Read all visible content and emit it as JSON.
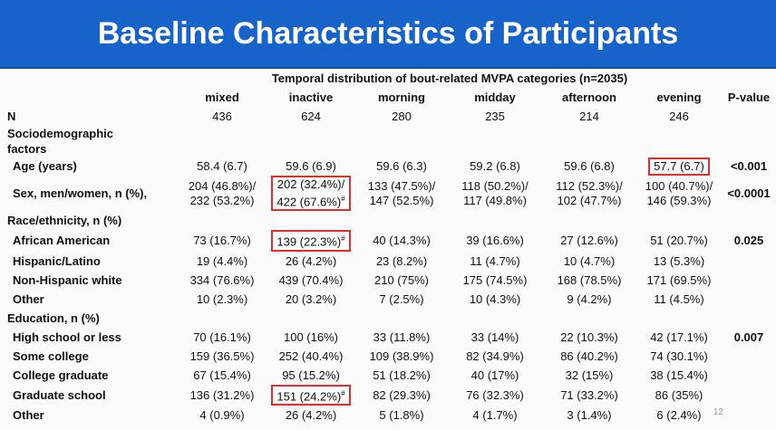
{
  "header": {
    "title": "Baseline Characteristics of Participants"
  },
  "table": {
    "caption": "Temporal distribution of bout-related MVPA categories (n=2035)",
    "columns": [
      "mixed",
      "inactive",
      "morning",
      "midday",
      "afternoon",
      "evening",
      "P-value"
    ],
    "rows": [
      {
        "label": "N",
        "cells": [
          "436",
          "624",
          "280",
          "235",
          "214",
          "246"
        ]
      },
      {
        "section": "Sociodemographic factors"
      },
      {
        "label": "Age (years)",
        "cells": [
          "58.4 (6.7)",
          "59.6 (6.9)",
          "59.6 (6.3)",
          "59.2 (6.8)",
          "59.6 (6.8)",
          {
            "text": "57.7 (6.7)",
            "boxed": true
          }
        ],
        "p": "<0.001"
      },
      {
        "label": "Sex, men/women, n (%),",
        "cells": [
          {
            "lines": [
              "204 (46.8%)/",
              "232 (53.2%)"
            ]
          },
          {
            "lines": [
              "202 (32.4%)/",
              "422 (67.6%)"
            ],
            "mark": "#",
            "boxed": true
          },
          {
            "lines": [
              "133 (47.5%)/",
              "147 (52.5%)"
            ]
          },
          {
            "lines": [
              "118 (50.2%)/",
              "117 (49.8%)"
            ]
          },
          {
            "lines": [
              "112 (52.3%)/",
              "102 (47.7%)"
            ]
          },
          {
            "lines": [
              "100 (40.7%)/",
              "146 (59.3%)"
            ]
          }
        ],
        "p": "<0.0001"
      },
      {
        "section": "Race/ethnicity, n (%)"
      },
      {
        "label": "African American",
        "cells": [
          "73 (16.7%)",
          {
            "text": "139 (22.3%)",
            "mark": "#",
            "boxed": true
          },
          "40 (14.3%)",
          "39 (16.6%)",
          "27 (12.6%)",
          "51 (20.7%)"
        ],
        "p": "0.025"
      },
      {
        "label": "Hispanic/Latino",
        "cells": [
          "19 (4.4%)",
          "26 (4.2%)",
          "23 (8.2%)",
          "11 (4.7%)",
          "10 (4.7%)",
          "13 (5.3%)"
        ]
      },
      {
        "label": "Non-Hispanic white",
        "cells": [
          "334 (76.6%)",
          "439 (70.4%)",
          "210 (75%)",
          "175 (74.5%)",
          "168 (78.5%)",
          "171 (69.5%)"
        ]
      },
      {
        "label": "Other",
        "cells": [
          "10 (2.3%)",
          "20 (3.2%)",
          "7 (2.5%)",
          "10 (4.3%)",
          "9 (4.2%)",
          "11 (4.5%)"
        ]
      },
      {
        "section": "Education, n (%)"
      },
      {
        "label": "High school or less",
        "cells": [
          "70 (16.1%)",
          "100 (16%)",
          "33 (11.8%)",
          "33 (14%)",
          "22 (10.3%)",
          "42 (17.1%)"
        ],
        "p": "0.007"
      },
      {
        "label": "Some college",
        "cells": [
          "159 (36.5%)",
          "252 (40.4%)",
          "109 (38.9%)",
          "82 (34.9%)",
          "86 (40.2%)",
          "74 (30.1%)"
        ]
      },
      {
        "label": "College graduate",
        "cells": [
          "67 (15.4%)",
          "95 (15.2%)",
          "51 (18.2%)",
          "40 (17%)",
          "32 (15%)",
          "38 (15.4%)"
        ]
      },
      {
        "label": "Graduate school",
        "cells": [
          "136 (31.2%)",
          {
            "text": "151 (24.2%)",
            "mark": "#",
            "boxed": true
          },
          "82 (29.3%)",
          "76 (32.3%)",
          "71 (33.2%)",
          "86 (35%)"
        ]
      },
      {
        "label": "Other",
        "cells": [
          "4 (0.9%)",
          "26 (4.2%)",
          "5 (1.8%)",
          "4 (1.7%)",
          "3 (1.4%)",
          "6 (2.4%)"
        ]
      }
    ]
  },
  "page_number": "12"
}
